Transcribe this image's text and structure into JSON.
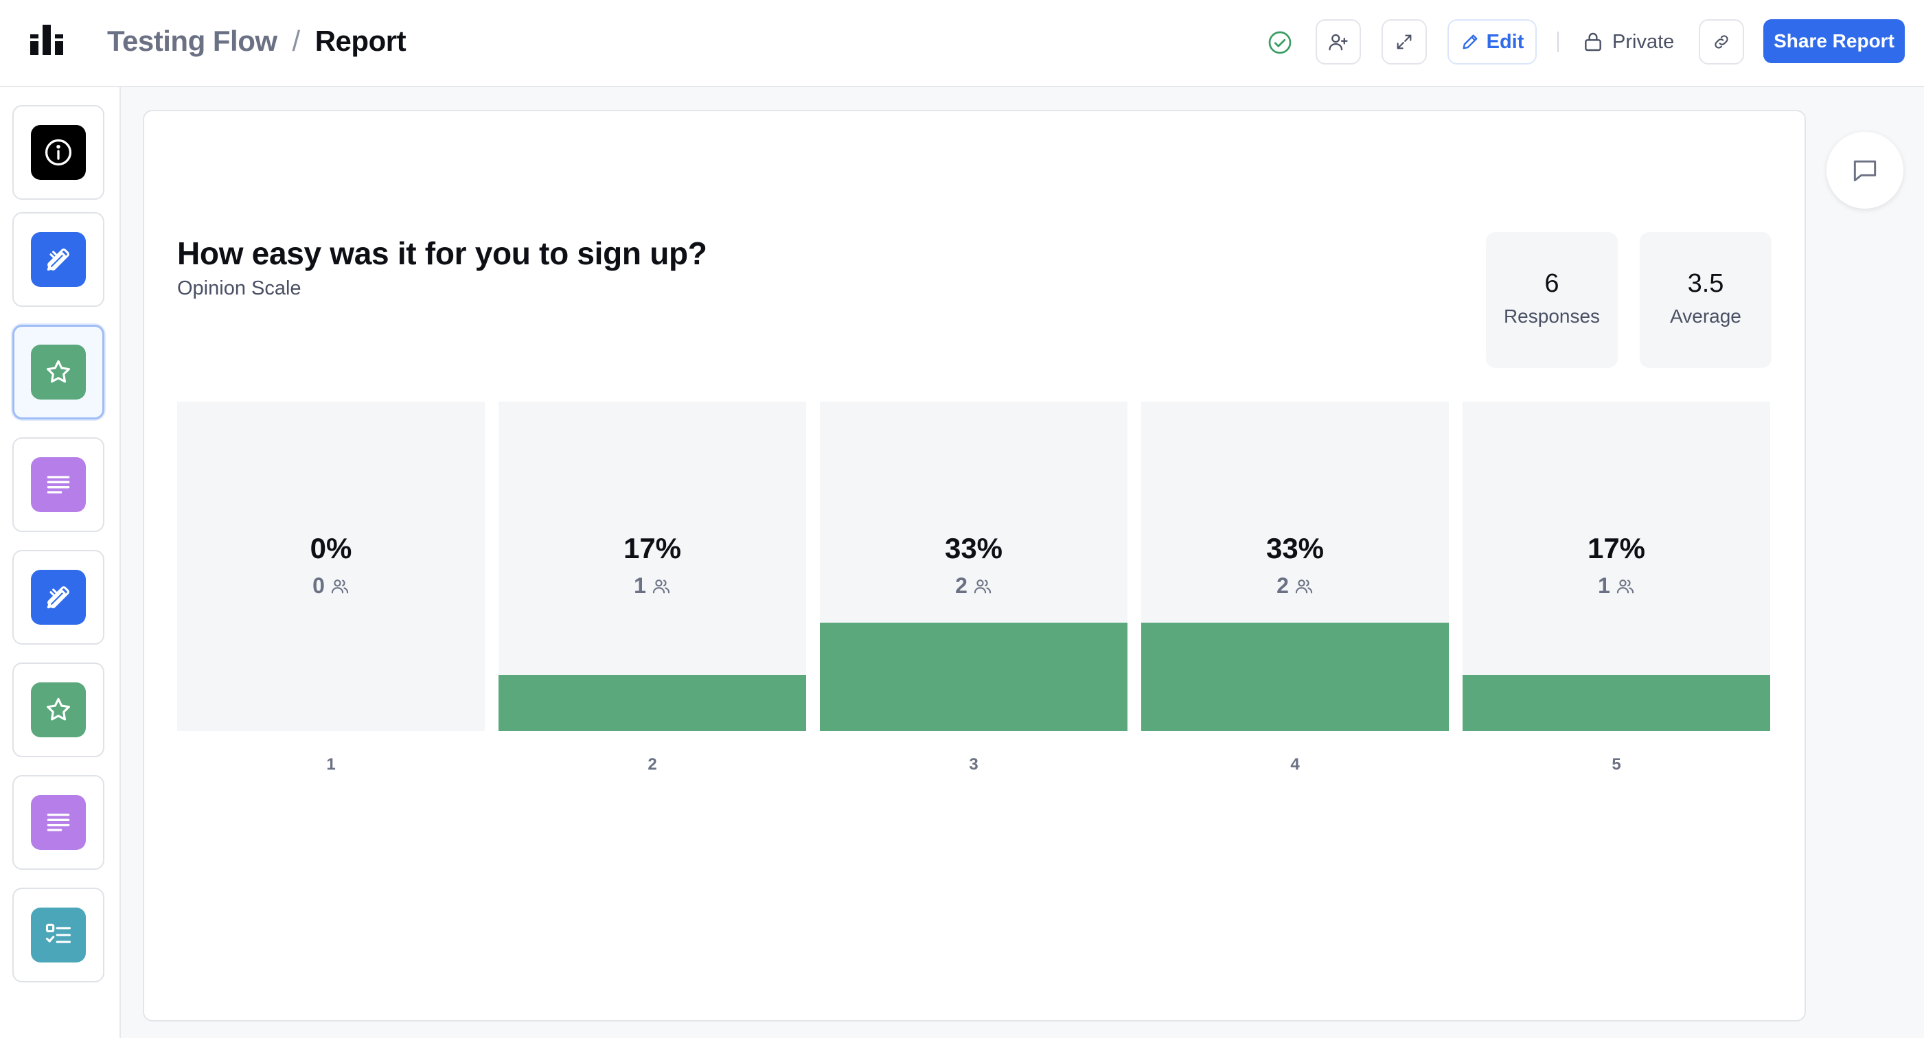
{
  "header": {
    "breadcrumb_parent": "Testing Flow",
    "breadcrumb_separator": "/",
    "breadcrumb_current": "Report",
    "edit_label": "Edit",
    "privacy_label": "Private",
    "share_label": "Share Report"
  },
  "sidebar": {
    "items": [
      {
        "icon": "info-icon",
        "color": "#000000"
      },
      {
        "icon": "design-tools-icon",
        "color": "#2f6bea"
      },
      {
        "icon": "star-icon",
        "color": "#5ba87d",
        "active": true
      },
      {
        "icon": "text-lines-icon",
        "color": "#b57ee8"
      },
      {
        "icon": "design-tools-icon",
        "color": "#2f6bea"
      },
      {
        "icon": "star-icon",
        "color": "#5ba87d"
      },
      {
        "icon": "text-lines-icon",
        "color": "#b57ee8"
      },
      {
        "icon": "checklist-icon",
        "color": "#4aa6b8"
      }
    ]
  },
  "question": {
    "title": "How easy was it for you to sign up?",
    "type": "Opinion Scale"
  },
  "stats": {
    "responses_value": "6",
    "responses_label": "Responses",
    "average_value": "3.5",
    "average_label": "Average"
  },
  "chart_data": {
    "type": "bar",
    "categories": [
      "1",
      "2",
      "3",
      "4",
      "5"
    ],
    "values": [
      0,
      17,
      33,
      33,
      17
    ],
    "percent_labels": [
      "0%",
      "17%",
      "33%",
      "33%",
      "17%"
    ],
    "counts": [
      "0",
      "1",
      "2",
      "2",
      "1"
    ],
    "bar_color": "#5ba87d"
  }
}
